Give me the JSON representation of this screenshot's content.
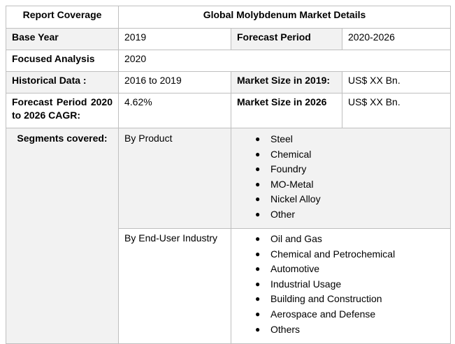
{
  "table": {
    "header": {
      "left": "Report Coverage",
      "right": "Global Molybdenum Market  Details"
    },
    "base_year": {
      "label": "Base Year",
      "value": "2019",
      "forecast_label": "Forecast Period",
      "forecast_value": "2020-2026"
    },
    "focused_analysis": {
      "label": "Focused Analysis",
      "value": "2020"
    },
    "historical": {
      "label": "Historical Data :",
      "value": "2016 to 2019",
      "market_label": "Market Size in 2019:",
      "market_value": "US$ XX Bn."
    },
    "cagr": {
      "label": "Forecast Period 2020 to 2026 CAGR:",
      "value": "4.62%",
      "market_label": "Market Size in 2026",
      "market_value": "US$ XX Bn."
    },
    "segments": {
      "label": "Segments covered:",
      "by_product": {
        "label": "By Product",
        "items": [
          "Steel",
          "Chemical",
          "Foundry",
          "MO-Metal",
          "Nickel Alloy",
          "Other"
        ]
      },
      "by_end_user": {
        "label": "By End-User Industry",
        "items": [
          "Oil and Gas",
          "Chemical and Petrochemical",
          "Automotive",
          "Industrial Usage",
          "Building and Construction",
          "Aerospace and Defense",
          "Others"
        ]
      }
    }
  },
  "bullet_glyph": "●"
}
